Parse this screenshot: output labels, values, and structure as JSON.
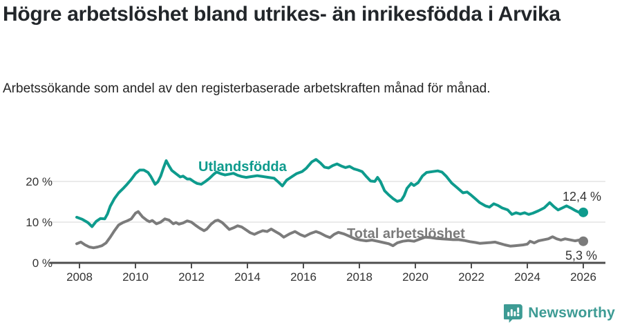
{
  "header": {
    "title": "Högre arbetslöshet bland utrikes- än inrikesfödda i Arvika",
    "subtitle": "Arbetssökande som andel av den registerbaserade arbetskraften månad för månad."
  },
  "footer": {
    "brand": "Newsworthy"
  },
  "colors": {
    "series_foreign_born": "#0e9b8d",
    "series_total": "#7b7b7b",
    "axis": "#4d4d4d",
    "gridline": "#e3e3e3",
    "tick_text": "#333333",
    "title_text": "#22262a",
    "logo": "#3d9b94",
    "background": "#ffffff"
  },
  "chart_data": {
    "type": "line",
    "title": "Högre arbetslöshet bland utrikes- än inrikesfödda i Arvika",
    "subtitle": "Arbetssökande som andel av den registerbaserade arbetskraften månad för månad.",
    "xlabel": "",
    "ylabel": "",
    "unit": "%",
    "xlim": [
      2007.8,
      2026.8
    ],
    "ylim": [
      0,
      27
    ],
    "grid": "horizontal",
    "legend": "inline-labels",
    "x_ticks": [
      "2008",
      "2010",
      "2012",
      "2014",
      "2016",
      "2018",
      "2020",
      "2022",
      "2024",
      "2026"
    ],
    "y_ticks": [
      {
        "value": 0,
        "label": "0 %"
      },
      {
        "value": 10,
        "label": "10 %"
      },
      {
        "value": 20,
        "label": "20 %"
      }
    ],
    "series": [
      {
        "name": "Utlandsfödda",
        "color": "#0e9b8d",
        "end_value": 12.4,
        "end_label": "12,4 %",
        "points": [
          [
            2007.9,
            11.2
          ],
          [
            2008.1,
            10.7
          ],
          [
            2008.3,
            9.9
          ],
          [
            2008.45,
            8.9
          ],
          [
            2008.6,
            10.2
          ],
          [
            2008.75,
            10.9
          ],
          [
            2008.9,
            10.8
          ],
          [
            2009.0,
            12.0
          ],
          [
            2009.1,
            13.9
          ],
          [
            2009.25,
            15.8
          ],
          [
            2009.4,
            17.2
          ],
          [
            2009.55,
            18.2
          ],
          [
            2009.7,
            19.3
          ],
          [
            2009.85,
            20.5
          ],
          [
            2010.0,
            21.9
          ],
          [
            2010.15,
            22.8
          ],
          [
            2010.3,
            22.8
          ],
          [
            2010.45,
            22.2
          ],
          [
            2010.55,
            21.2
          ],
          [
            2010.7,
            19.3
          ],
          [
            2010.8,
            19.9
          ],
          [
            2010.9,
            21.3
          ],
          [
            2011.0,
            23.3
          ],
          [
            2011.1,
            25.1
          ],
          [
            2011.2,
            23.8
          ],
          [
            2011.3,
            22.7
          ],
          [
            2011.45,
            21.9
          ],
          [
            2011.6,
            21.1
          ],
          [
            2011.7,
            21.3
          ],
          [
            2011.85,
            20.6
          ],
          [
            2011.95,
            20.6
          ],
          [
            2012.1,
            19.9
          ],
          [
            2012.2,
            19.5
          ],
          [
            2012.35,
            19.3
          ],
          [
            2012.5,
            20.0
          ],
          [
            2012.65,
            20.8
          ],
          [
            2012.8,
            21.8
          ],
          [
            2012.9,
            22.3
          ],
          [
            2013.05,
            21.9
          ],
          [
            2013.2,
            21.6
          ],
          [
            2013.35,
            21.8
          ],
          [
            2013.5,
            22.0
          ],
          [
            2013.65,
            21.5
          ],
          [
            2013.8,
            21.2
          ],
          [
            2013.95,
            21.0
          ],
          [
            2014.15,
            21.2
          ],
          [
            2014.35,
            21.4
          ],
          [
            2014.55,
            21.2
          ],
          [
            2014.75,
            21.0
          ],
          [
            2014.95,
            20.8
          ],
          [
            2015.1,
            19.9
          ],
          [
            2015.25,
            18.9
          ],
          [
            2015.4,
            20.3
          ],
          [
            2015.55,
            21.0
          ],
          [
            2015.75,
            21.9
          ],
          [
            2015.95,
            22.4
          ],
          [
            2016.1,
            23.2
          ],
          [
            2016.3,
            24.8
          ],
          [
            2016.45,
            25.4
          ],
          [
            2016.6,
            24.6
          ],
          [
            2016.75,
            23.5
          ],
          [
            2016.9,
            23.3
          ],
          [
            2017.05,
            23.9
          ],
          [
            2017.2,
            24.3
          ],
          [
            2017.35,
            23.8
          ],
          [
            2017.5,
            23.4
          ],
          [
            2017.65,
            23.7
          ],
          [
            2017.8,
            23.1
          ],
          [
            2017.95,
            22.8
          ],
          [
            2018.1,
            22.4
          ],
          [
            2018.25,
            21.2
          ],
          [
            2018.4,
            20.1
          ],
          [
            2018.55,
            20.0
          ],
          [
            2018.65,
            21.0
          ],
          [
            2018.75,
            20.0
          ],
          [
            2018.9,
            17.7
          ],
          [
            2019.05,
            16.7
          ],
          [
            2019.2,
            15.8
          ],
          [
            2019.35,
            15.1
          ],
          [
            2019.5,
            15.4
          ],
          [
            2019.6,
            16.5
          ],
          [
            2019.7,
            18.3
          ],
          [
            2019.85,
            19.5
          ],
          [
            2019.95,
            19.0
          ],
          [
            2020.1,
            19.7
          ],
          [
            2020.25,
            21.3
          ],
          [
            2020.4,
            22.2
          ],
          [
            2020.6,
            22.4
          ],
          [
            2020.8,
            22.6
          ],
          [
            2020.95,
            22.3
          ],
          [
            2021.1,
            21.3
          ],
          [
            2021.3,
            19.6
          ],
          [
            2021.5,
            18.4
          ],
          [
            2021.7,
            17.2
          ],
          [
            2021.85,
            17.4
          ],
          [
            2022.0,
            16.6
          ],
          [
            2022.15,
            15.7
          ],
          [
            2022.3,
            14.8
          ],
          [
            2022.5,
            14.0
          ],
          [
            2022.65,
            13.7
          ],
          [
            2022.8,
            14.5
          ],
          [
            2022.95,
            14.1
          ],
          [
            2023.1,
            13.5
          ],
          [
            2023.3,
            13.0
          ],
          [
            2023.45,
            11.9
          ],
          [
            2023.6,
            12.3
          ],
          [
            2023.75,
            12.0
          ],
          [
            2023.9,
            12.3
          ],
          [
            2024.05,
            11.9
          ],
          [
            2024.2,
            12.2
          ],
          [
            2024.4,
            12.8
          ],
          [
            2024.6,
            13.5
          ],
          [
            2024.8,
            14.8
          ],
          [
            2024.95,
            13.8
          ],
          [
            2025.1,
            13.0
          ],
          [
            2025.25,
            13.5
          ],
          [
            2025.4,
            14.0
          ],
          [
            2025.55,
            13.5
          ],
          [
            2025.7,
            12.9
          ],
          [
            2025.85,
            12.4
          ],
          [
            2026.0,
            12.4
          ]
        ]
      },
      {
        "name": "Total arbetslöshet",
        "color": "#7b7b7b",
        "end_value": 5.3,
        "end_label": "5,3 %",
        "points": [
          [
            2007.9,
            4.7
          ],
          [
            2008.05,
            5.1
          ],
          [
            2008.2,
            4.4
          ],
          [
            2008.35,
            3.9
          ],
          [
            2008.5,
            3.7
          ],
          [
            2008.65,
            3.9
          ],
          [
            2008.8,
            4.2
          ],
          [
            2008.95,
            4.9
          ],
          [
            2009.1,
            6.3
          ],
          [
            2009.25,
            7.9
          ],
          [
            2009.4,
            9.3
          ],
          [
            2009.55,
            9.9
          ],
          [
            2009.7,
            10.3
          ],
          [
            2009.85,
            10.8
          ],
          [
            2010.0,
            12.2
          ],
          [
            2010.1,
            12.6
          ],
          [
            2010.25,
            11.3
          ],
          [
            2010.4,
            10.5
          ],
          [
            2010.5,
            10.1
          ],
          [
            2010.6,
            10.4
          ],
          [
            2010.75,
            9.6
          ],
          [
            2010.9,
            10.0
          ],
          [
            2011.05,
            10.8
          ],
          [
            2011.2,
            10.5
          ],
          [
            2011.35,
            9.6
          ],
          [
            2011.45,
            9.9
          ],
          [
            2011.55,
            9.5
          ],
          [
            2011.7,
            9.8
          ],
          [
            2011.85,
            10.3
          ],
          [
            2012.0,
            10.0
          ],
          [
            2012.15,
            9.2
          ],
          [
            2012.3,
            8.5
          ],
          [
            2012.45,
            7.9
          ],
          [
            2012.55,
            8.3
          ],
          [
            2012.7,
            9.5
          ],
          [
            2012.85,
            10.3
          ],
          [
            2012.95,
            10.5
          ],
          [
            2013.1,
            9.9
          ],
          [
            2013.25,
            8.9
          ],
          [
            2013.35,
            8.2
          ],
          [
            2013.5,
            8.6
          ],
          [
            2013.65,
            9.1
          ],
          [
            2013.8,
            8.8
          ],
          [
            2013.95,
            8.1
          ],
          [
            2014.1,
            7.4
          ],
          [
            2014.25,
            7.0
          ],
          [
            2014.4,
            7.5
          ],
          [
            2014.55,
            7.9
          ],
          [
            2014.7,
            7.7
          ],
          [
            2014.85,
            8.3
          ],
          [
            2015.0,
            7.7
          ],
          [
            2015.15,
            7.1
          ],
          [
            2015.3,
            6.3
          ],
          [
            2015.5,
            7.1
          ],
          [
            2015.7,
            7.7
          ],
          [
            2015.9,
            6.9
          ],
          [
            2016.05,
            6.5
          ],
          [
            2016.25,
            7.2
          ],
          [
            2016.45,
            7.7
          ],
          [
            2016.6,
            7.3
          ],
          [
            2016.8,
            6.6
          ],
          [
            2016.95,
            6.2
          ],
          [
            2017.1,
            7.0
          ],
          [
            2017.25,
            7.5
          ],
          [
            2017.45,
            7.1
          ],
          [
            2017.65,
            6.5
          ],
          [
            2017.85,
            5.9
          ],
          [
            2018.05,
            5.6
          ],
          [
            2018.25,
            5.4
          ],
          [
            2018.45,
            5.6
          ],
          [
            2018.65,
            5.3
          ],
          [
            2018.85,
            5.0
          ],
          [
            2019.05,
            4.7
          ],
          [
            2019.2,
            4.2
          ],
          [
            2019.35,
            4.9
          ],
          [
            2019.55,
            5.3
          ],
          [
            2019.75,
            5.5
          ],
          [
            2019.95,
            5.3
          ],
          [
            2020.15,
            5.8
          ],
          [
            2020.35,
            6.3
          ],
          [
            2020.55,
            6.2
          ],
          [
            2020.75,
            6.0
          ],
          [
            2020.95,
            5.9
          ],
          [
            2021.15,
            5.8
          ],
          [
            2021.35,
            5.7
          ],
          [
            2021.55,
            5.7
          ],
          [
            2021.75,
            5.5
          ],
          [
            2021.95,
            5.2
          ],
          [
            2022.15,
            5.0
          ],
          [
            2022.3,
            4.8
          ],
          [
            2022.5,
            4.9
          ],
          [
            2022.7,
            5.0
          ],
          [
            2022.85,
            5.1
          ],
          [
            2023.0,
            4.8
          ],
          [
            2023.2,
            4.4
          ],
          [
            2023.4,
            4.1
          ],
          [
            2023.55,
            4.2
          ],
          [
            2023.7,
            4.3
          ],
          [
            2023.85,
            4.4
          ],
          [
            2024.0,
            4.6
          ],
          [
            2024.1,
            5.3
          ],
          [
            2024.25,
            4.9
          ],
          [
            2024.4,
            5.4
          ],
          [
            2024.6,
            5.7
          ],
          [
            2024.75,
            5.9
          ],
          [
            2024.9,
            6.4
          ],
          [
            2025.05,
            5.9
          ],
          [
            2025.2,
            5.6
          ],
          [
            2025.35,
            5.9
          ],
          [
            2025.5,
            5.7
          ],
          [
            2025.7,
            5.4
          ],
          [
            2025.85,
            5.6
          ],
          [
            2026.0,
            5.3
          ]
        ]
      }
    ]
  }
}
